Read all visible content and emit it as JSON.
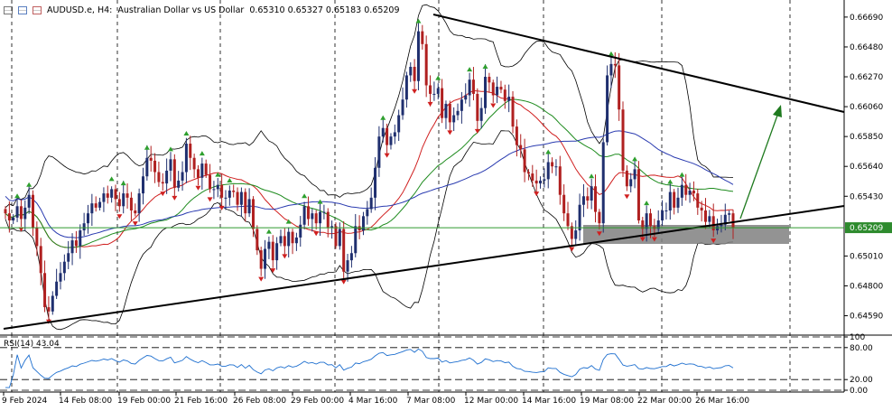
{
  "header": {
    "symbol": "AUDUSD.e, H4:",
    "name": "Australian Dollar vs US Dollar",
    "ohlc": "0.65310 0.65327 0.65183 0.65209"
  },
  "price_axis": {
    "ticks": [
      "0.66690",
      "0.66480",
      "0.66270",
      "0.66060",
      "0.65850",
      "0.65640",
      "0.65430",
      "0.65010",
      "0.64800",
      "0.64590"
    ],
    "current": "0.65209"
  },
  "time_axis": [
    "9 Feb 2024",
    "14 Feb 08:00",
    "19 Feb 00:00",
    "21 Feb 16:00",
    "26 Feb 08:00",
    "29 Feb 00:00",
    "4 Mar 16:00",
    "7 Mar 08:00",
    "12 Mar 00:00",
    "14 Mar 16:00",
    "19 Mar 08:00",
    "22 Mar 00:00",
    "26 Mar 16:00"
  ],
  "rsi": {
    "label": "RSI(14) 43.04",
    "ticks": [
      "100",
      "80.00",
      "20.00",
      "0.00"
    ]
  },
  "colors": {
    "bull": "#1f2f6f",
    "bear": "#b02020",
    "bb": "#000000",
    "ma_blue": "#2a3bb0",
    "ma_green": "#1e8b1e",
    "ma_red": "#d02020",
    "trend": "#000000",
    "arrow": "#1e7a1e",
    "rsi": "#1e6fcf",
    "zone": "#808080"
  },
  "chart_data": {
    "type": "candlestick",
    "symbol": "AUDUSD.e",
    "timeframe": "H4",
    "ylim": [
      0.6446,
      0.6681
    ],
    "last_price": 0.65209,
    "closes": [
      0.6531,
      0.6526,
      0.6528,
      0.6536,
      0.6527,
      0.6535,
      0.6544,
      0.6521,
      0.6508,
      0.6489,
      0.6465,
      0.6462,
      0.6473,
      0.6483,
      0.6489,
      0.6497,
      0.6503,
      0.6512,
      0.6508,
      0.6519,
      0.6524,
      0.6531,
      0.6538,
      0.6535,
      0.6539,
      0.6545,
      0.6542,
      0.6548,
      0.6541,
      0.6536,
      0.6545,
      0.6542,
      0.6533,
      0.6531,
      0.6545,
      0.6557,
      0.657,
      0.6568,
      0.656,
      0.6553,
      0.6552,
      0.6561,
      0.6569,
      0.6549,
      0.6554,
      0.656,
      0.658,
      0.657,
      0.6562,
      0.6556,
      0.6566,
      0.6558,
      0.6548,
      0.6548,
      0.6551,
      0.6542,
      0.6542,
      0.6547,
      0.6546,
      0.6537,
      0.6546,
      0.6531,
      0.6541,
      0.652,
      0.6505,
      0.6492,
      0.6506,
      0.6511,
      0.6498,
      0.651,
      0.6515,
      0.6508,
      0.6518,
      0.651,
      0.6514,
      0.6523,
      0.6536,
      0.6527,
      0.6531,
      0.6524,
      0.6532,
      0.6532,
      0.6521,
      0.6522,
      0.6508,
      0.652,
      0.649,
      0.6498,
      0.6503,
      0.6522,
      0.6519,
      0.6529,
      0.6534,
      0.6542,
      0.6563,
      0.6585,
      0.6591,
      0.6579,
      0.6585,
      0.6588,
      0.66,
      0.6611,
      0.6628,
      0.6634,
      0.6624,
      0.6659,
      0.665,
      0.6621,
      0.6615,
      0.6615,
      0.6619,
      0.6598,
      0.6608,
      0.6595,
      0.66,
      0.6603,
      0.6611,
      0.6614,
      0.6625,
      0.6615,
      0.6596,
      0.6605,
      0.6627,
      0.6623,
      0.6614,
      0.662,
      0.6618,
      0.661,
      0.6613,
      0.6592,
      0.6579,
      0.6576,
      0.656,
      0.6559,
      0.6554,
      0.6552,
      0.6554,
      0.6555,
      0.6567,
      0.6564,
      0.6564,
      0.6544,
      0.6531,
      0.6522,
      0.6513,
      0.6519,
      0.6537,
      0.6543,
      0.654,
      0.655,
      0.6532,
      0.6524,
      0.6581,
      0.6628,
      0.6636,
      0.6635,
      0.6604,
      0.6561,
      0.655,
      0.6555,
      0.6562,
      0.6526,
      0.652,
      0.6531,
      0.6522,
      0.652,
      0.6526,
      0.6533,
      0.6533,
      0.6546,
      0.6535,
      0.6542,
      0.6551,
      0.6544,
      0.6547,
      0.6545,
      0.6535,
      0.6533,
      0.6525,
      0.6529,
      0.6519,
      0.6522,
      0.6523,
      0.653,
      0.6531,
      0.6521
    ]
  }
}
